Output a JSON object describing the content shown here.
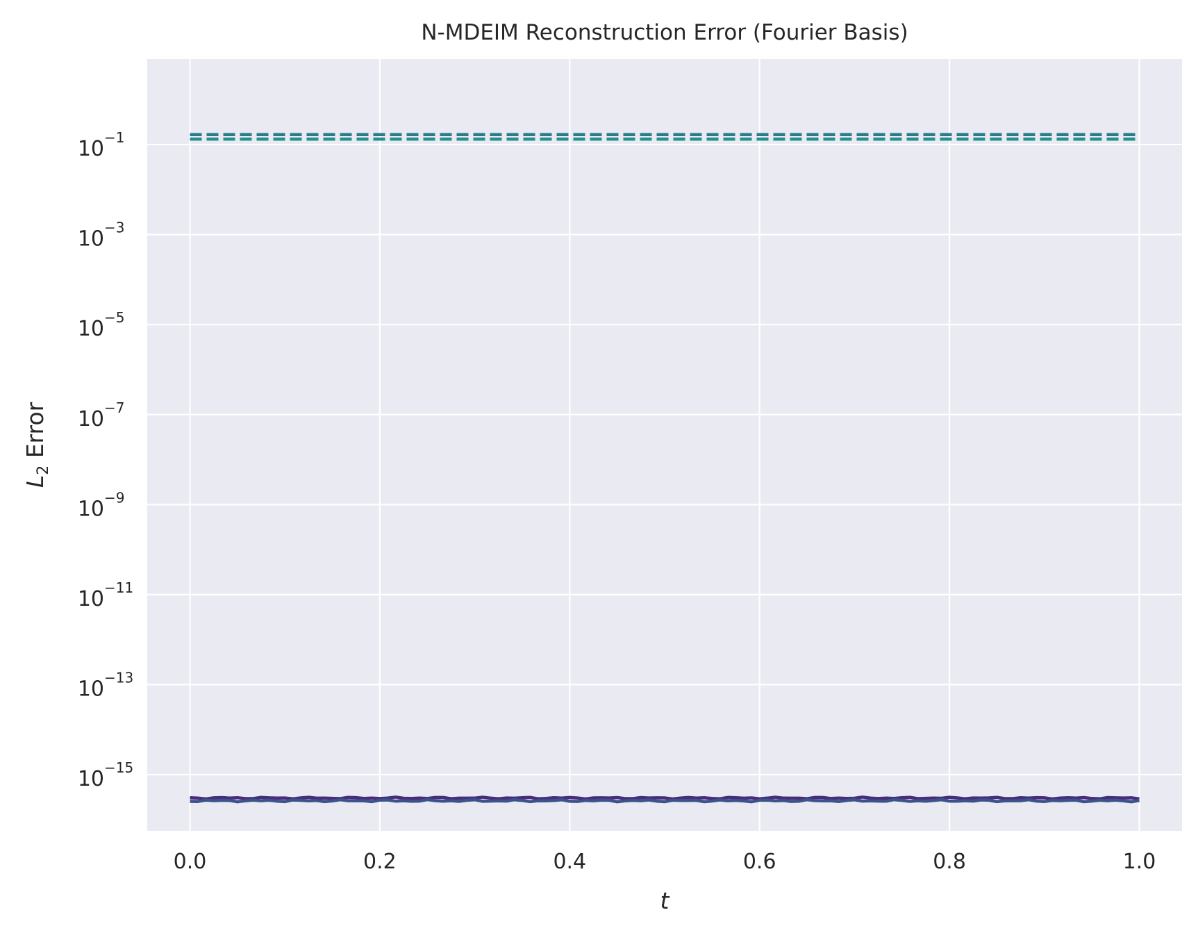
{
  "chart_data": {
    "type": "line",
    "title": "N-MDEIM Reconstruction Error (Fourier Basis)",
    "xlabel": "t",
    "ylabel_main": "L",
    "ylabel_sub": "2",
    "ylabel_rest": " Error",
    "xlim": [
      -0.045,
      1.045
    ],
    "ylim_log10": [
      -16.25,
      0.9
    ],
    "yscale": "log",
    "grid": true,
    "legend": "none",
    "x_ticks": [
      "0.0",
      "0.2",
      "0.4",
      "0.6",
      "0.8",
      "1.0"
    ],
    "x_tick_values": [
      0.0,
      0.2,
      0.4,
      0.6,
      0.8,
      1.0
    ],
    "y_ticks": [
      {
        "base": "10",
        "exp": "−1",
        "log10": -1
      },
      {
        "base": "10",
        "exp": "−3",
        "log10": -3
      },
      {
        "base": "10",
        "exp": "−5",
        "log10": -5
      },
      {
        "base": "10",
        "exp": "−7",
        "log10": -7
      },
      {
        "base": "10",
        "exp": "−9",
        "log10": -9
      },
      {
        "base": "10",
        "exp": "−11",
        "log10": -11
      },
      {
        "base": "10",
        "exp": "−13",
        "log10": -13
      },
      {
        "base": "10",
        "exp": "−15",
        "log10": -15
      }
    ],
    "series": [
      {
        "style": "dashed",
        "color": "#21918c",
        "x_range": [
          0.0,
          1.0
        ],
        "level_log10": -0.88,
        "jitter": 0.0
      },
      {
        "style": "dashed",
        "color": "#2a7b8e",
        "x_range": [
          0.0,
          1.0
        ],
        "level_log10": -0.78,
        "jitter": 0.0
      },
      {
        "style": "solid",
        "color": "#472d7b",
        "x_range": [
          0.0,
          1.0
        ],
        "level_log10": -15.52,
        "jitter": 0.02
      },
      {
        "style": "solid",
        "color": "#3b528b",
        "x_range": [
          0.0,
          1.0
        ],
        "level_log10": -15.58,
        "jitter": 0.025
      }
    ],
    "colors": {
      "plot_bg": "#eaeaf2",
      "grid": "#ffffff",
      "text": "#262626"
    }
  }
}
